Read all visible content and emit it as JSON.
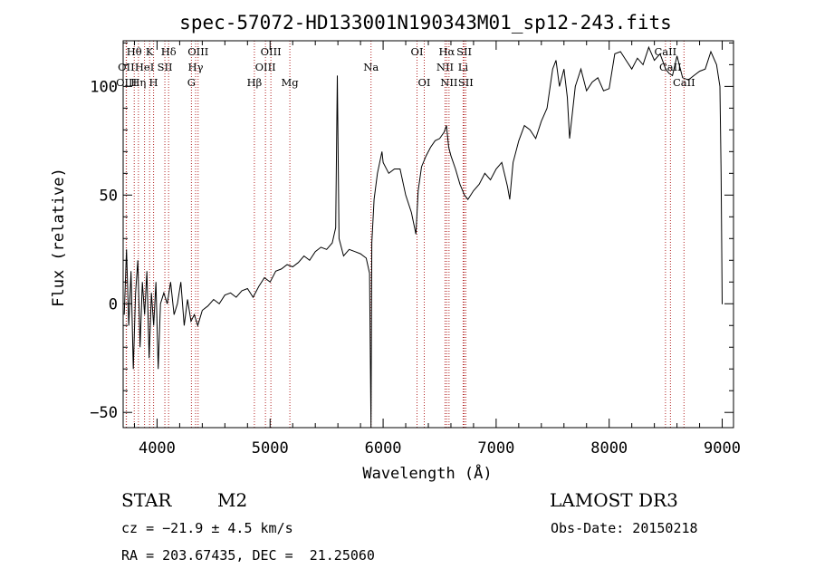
{
  "chart_data": {
    "type": "line",
    "title": "spec-57072-HD133001N190343M01_sp12-243.fits",
    "xlabel": "Wavelength (Å)",
    "ylabel": "Flux (relative)",
    "xlim": [
      3700,
      9100
    ],
    "ylim": [
      -57,
      121
    ],
    "xticks": [
      4000,
      5000,
      6000,
      7000,
      8000,
      9000
    ],
    "yticks": [
      -50,
      0,
      50,
      100
    ],
    "grid": false,
    "line_color": "#000000",
    "marker_color": "#b22222",
    "spectrum": {
      "x": [
        3710,
        3730,
        3750,
        3770,
        3790,
        3810,
        3830,
        3850,
        3870,
        3890,
        3910,
        3930,
        3950,
        3970,
        3990,
        4010,
        4030,
        4060,
        4090,
        4120,
        4150,
        4180,
        4210,
        4240,
        4270,
        4300,
        4330,
        4360,
        4400,
        4450,
        4500,
        4550,
        4600,
        4650,
        4700,
        4750,
        4800,
        4850,
        4900,
        4950,
        5000,
        5050,
        5100,
        5150,
        5200,
        5250,
        5300,
        5350,
        5400,
        5450,
        5500,
        5550,
        5580,
        5595,
        5610,
        5650,
        5700,
        5750,
        5800,
        5850,
        5880,
        5893,
        5900,
        5920,
        5950,
        5990,
        6000,
        6050,
        6100,
        6150,
        6200,
        6250,
        6290,
        6310,
        6340,
        6380,
        6420,
        6460,
        6500,
        6540,
        6560,
        6580,
        6600,
        6640,
        6680,
        6720,
        6750,
        6800,
        6850,
        6900,
        6950,
        7000,
        7050,
        7100,
        7120,
        7150,
        7200,
        7250,
        7300,
        7350,
        7400,
        7450,
        7500,
        7530,
        7560,
        7600,
        7630,
        7650,
        7700,
        7750,
        7800,
        7850,
        7900,
        7950,
        8000,
        8050,
        8100,
        8150,
        8200,
        8250,
        8300,
        8350,
        8400,
        8450,
        8500,
        8530,
        8560,
        8600,
        8650,
        8700,
        8750,
        8800,
        8850,
        8900,
        8950,
        8980,
        8990,
        9000,
        9005
      ],
      "y": [
        -5,
        25,
        -10,
        15,
        -30,
        5,
        20,
        -20,
        10,
        -5,
        15,
        -25,
        5,
        -10,
        10,
        -30,
        0,
        5,
        0,
        10,
        -5,
        0,
        10,
        -10,
        2,
        -8,
        -5,
        -10,
        -3,
        -1,
        2,
        0,
        4,
        5,
        3,
        6,
        7,
        3,
        8,
        12,
        10,
        15,
        16,
        18,
        17,
        19,
        22,
        20,
        24,
        26,
        25,
        28,
        35,
        105,
        30,
        22,
        25,
        24,
        23,
        21,
        14,
        -60,
        28,
        48,
        60,
        70,
        65,
        60,
        62,
        62,
        50,
        42,
        32,
        52,
        63,
        68,
        72,
        75,
        76,
        79,
        82,
        72,
        68,
        62,
        55,
        50,
        48,
        52,
        55,
        60,
        57,
        62,
        65,
        54,
        48,
        65,
        75,
        82,
        80,
        76,
        84,
        90,
        108,
        112,
        100,
        108,
        95,
        76,
        100,
        108,
        98,
        102,
        104,
        98,
        99,
        115,
        116,
        112,
        108,
        113,
        110,
        118,
        112,
        115,
        108,
        106,
        105,
        114,
        104,
        103,
        105,
        107,
        108,
        116,
        110,
        100,
        60,
        0,
        0
      ]
    },
    "lines": [
      {
        "name": "Hθ",
        "wl": 3798,
        "row": 1
      },
      {
        "name": "OII",
        "wl": 3727,
        "row": 2
      },
      {
        "name": "OIII",
        "wl": 3729,
        "row": 3
      },
      {
        "name": "K",
        "wl": 3934,
        "row": 1
      },
      {
        "name": "Hη",
        "wl": 3835,
        "row": 3
      },
      {
        "name": "HeI",
        "wl": 3889,
        "row": 2
      },
      {
        "name": "H",
        "wl": 3969,
        "row": 3
      },
      {
        "name": "SII",
        "wl": 4069,
        "row": 2
      },
      {
        "name": "Hδ",
        "wl": 4102,
        "row": 1
      },
      {
        "name": "G",
        "wl": 4304,
        "row": 3
      },
      {
        "name": "Hγ",
        "wl": 4341,
        "row": 2
      },
      {
        "name": "OIII",
        "wl": 4363,
        "row": 1
      },
      {
        "name": "Hβ",
        "wl": 4861,
        "row": 3
      },
      {
        "name": "OIII",
        "wl": 4959,
        "row": 2
      },
      {
        "name": "OIII",
        "wl": 5007,
        "row": 1
      },
      {
        "name": "Mg",
        "wl": 5175,
        "row": 3
      },
      {
        "name": "Na",
        "wl": 5893,
        "row": 2
      },
      {
        "name": "OI",
        "wl": 6300,
        "row": 1
      },
      {
        "name": "OI",
        "wl": 6364,
        "row": 3
      },
      {
        "name": "NII",
        "wl": 6548,
        "row": 2
      },
      {
        "name": "Hα",
        "wl": 6563,
        "row": 1
      },
      {
        "name": "NII",
        "wl": 6583,
        "row": 3
      },
      {
        "name": "Li",
        "wl": 6708,
        "row": 2
      },
      {
        "name": "SII",
        "wl": 6717,
        "row": 1
      },
      {
        "name": "SII",
        "wl": 6731,
        "row": 3
      },
      {
        "name": "CaII",
        "wl": 8498,
        "row": 1
      },
      {
        "name": "CaII",
        "wl": 8542,
        "row": 2
      },
      {
        "name": "CaII",
        "wl": 8662,
        "row": 3
      }
    ]
  },
  "info": {
    "class": "STAR",
    "subclass": "M2",
    "survey": "LAMOST DR3",
    "cz": "cz = −21.9 ± 4.5 km/s",
    "obs_date": "Obs-Date: 20150218",
    "radec": "RA = 203.67435, DEC =  21.25060"
  }
}
